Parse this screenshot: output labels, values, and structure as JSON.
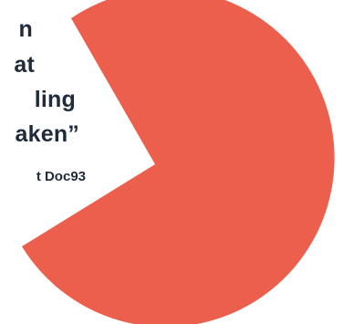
{
  "quote": {
    "lines": [
      "n",
      "at",
      "ling",
      "aken”"
    ],
    "attribution": "t Doc93"
  },
  "shape": {
    "type": "pie-with-wedge-cut",
    "color": "#ec5f4d"
  }
}
